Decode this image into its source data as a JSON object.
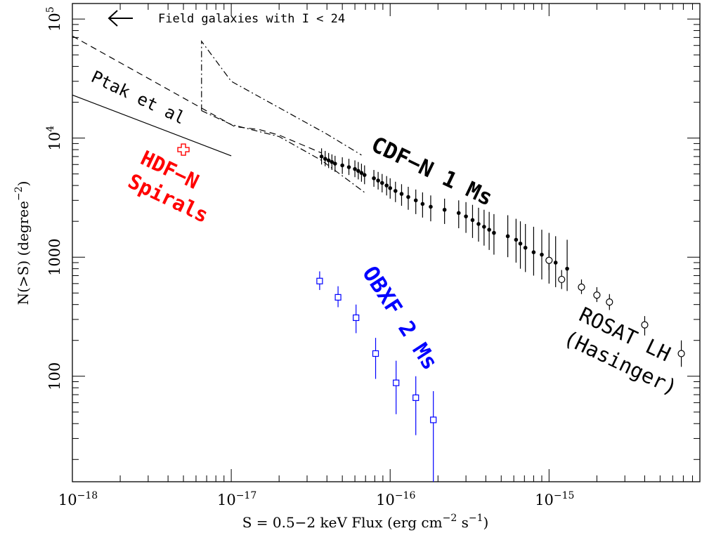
{
  "chart_data": {
    "type": "scatter",
    "title": "",
    "xlabel_main": "S = 0.5−2 keV Flux (erg cm",
    "xlabel_sup1": "−2",
    "xlabel_mid": " s",
    "xlabel_sup2": "−1",
    "xlabel_end": ")",
    "ylabel_main": "N(>S) (degree",
    "ylabel_sup": "−2",
    "ylabel_end": ")",
    "x_log": true,
    "y_log": true,
    "xlim": [
      1e-18,
      8.9e-15
    ],
    "ylim": [
      13,
      135000
    ],
    "x_ticks": [
      {
        "value": 1e-18,
        "base": "10",
        "exp": "−18"
      },
      {
        "value": 1e-17,
        "base": "10",
        "exp": "−17"
      },
      {
        "value": 1e-16,
        "base": "10",
        "exp": "−16"
      },
      {
        "value": 1e-15,
        "base": "10",
        "exp": "−15"
      }
    ],
    "y_ticks": [
      {
        "value": 100,
        "label": "100"
      },
      {
        "value": 1000,
        "label": "1000"
      },
      {
        "value": 10000,
        "base": "10",
        "exp": "4"
      },
      {
        "value": 100000,
        "base": "10",
        "exp": "5"
      }
    ],
    "annotations": {
      "field_galaxies": "Field galaxies with I < 24",
      "ptak": "Ptak et al",
      "hdfn_line1": "HDF−N",
      "hdfn_line2": "Spirals",
      "cdfn": "CDF−N 1 Ms",
      "obxf": "OBXF 2 Ms",
      "rosat_line1": "ROSAT LH",
      "rosat_line2": "(Hasinger)"
    },
    "colors": {
      "cdfn": "#000000",
      "hdfn": "#ff0000",
      "obxf": "#0000ff",
      "rosat": "#000000"
    },
    "series": [
      {
        "name": "CDF−N 1 Ms",
        "marker": "filled-circle",
        "points": [
          [
            3.7e-17,
            7000,
            8200,
            6000
          ],
          [
            3.9e-17,
            6700,
            7800,
            5800
          ],
          [
            4.1e-17,
            6500,
            7500,
            5600
          ],
          [
            4.3e-17,
            6300,
            7300,
            5400
          ],
          [
            4.5e-17,
            6100,
            7100,
            5200
          ],
          [
            5e-17,
            5900,
            6900,
            5000
          ],
          [
            5.5e-17,
            5700,
            6700,
            4900
          ],
          [
            6e-17,
            5500,
            6500,
            4700
          ],
          [
            6.3e-17,
            5300,
            6300,
            4500
          ],
          [
            6.6e-17,
            5100,
            6100,
            4300
          ],
          [
            6.9e-17,
            4900,
            5900,
            4100
          ],
          [
            7.9e-17,
            4600,
            5400,
            3900
          ],
          [
            8.4e-17,
            4400,
            5200,
            3700
          ],
          [
            8.9e-17,
            4200,
            5000,
            3500
          ],
          [
            9.5e-17,
            4000,
            4800,
            3300
          ],
          [
            1e-16,
            3800,
            4600,
            3100
          ],
          [
            1.08e-16,
            3600,
            4300,
            2900
          ],
          [
            1.18e-16,
            3400,
            4100,
            2700
          ],
          [
            1.3e-16,
            3200,
            3900,
            2500
          ],
          [
            1.45e-16,
            3000,
            3700,
            2300
          ],
          [
            1.6e-16,
            2800,
            3500,
            2150
          ],
          [
            1.8e-16,
            2650,
            3300,
            2000
          ],
          [
            2.2e-16,
            2500,
            3100,
            1900
          ],
          [
            2.7e-16,
            2350,
            3000,
            1750
          ],
          [
            3e-16,
            2200,
            2900,
            1600
          ],
          [
            3.3e-16,
            2050,
            2750,
            1450
          ],
          [
            3.6e-16,
            1900,
            2600,
            1350
          ],
          [
            3.9e-16,
            1800,
            2500,
            1250
          ],
          [
            4.2e-16,
            1700,
            2400,
            1150
          ],
          [
            4.5e-16,
            1600,
            2300,
            1050
          ],
          [
            5.5e-16,
            1500,
            2250,
            1000
          ],
          [
            6.2e-16,
            1400,
            2100,
            900
          ],
          [
            6.6e-16,
            1300,
            2000,
            800
          ],
          [
            7.1e-16,
            1200,
            1900,
            750
          ],
          [
            8e-16,
            1100,
            1800,
            700
          ],
          [
            9e-16,
            1050,
            1700,
            650
          ],
          [
            1e-15,
            950,
            1600,
            600
          ],
          [
            1.1e-15,
            900,
            1500,
            560
          ],
          [
            1.3e-15,
            800,
            1400,
            520
          ]
        ]
      },
      {
        "name": "ROSAT LH (Hasinger)",
        "marker": "open-circle",
        "points": [
          [
            1e-15,
            940,
            1150,
            780
          ],
          [
            1.2e-15,
            650,
            780,
            540
          ],
          [
            1.6e-15,
            560,
            650,
            490
          ],
          [
            2e-15,
            480,
            560,
            420
          ],
          [
            2.4e-15,
            420,
            490,
            360
          ],
          [
            4e-15,
            270,
            320,
            220
          ],
          [
            6.8e-15,
            155,
            200,
            120
          ]
        ]
      },
      {
        "name": "OBXF 2 Ms",
        "marker": "open-square",
        "points": [
          [
            3.6e-17,
            630,
            760,
            530
          ],
          [
            4.7e-17,
            460,
            570,
            380
          ],
          [
            6.1e-17,
            310,
            400,
            230
          ],
          [
            8.1e-17,
            155,
            210,
            95
          ],
          [
            1.09e-16,
            88,
            135,
            48
          ],
          [
            1.45e-16,
            66,
            100,
            32
          ],
          [
            1.87e-16,
            43,
            75,
            13
          ]
        ]
      },
      {
        "name": "HDF−N Spirals",
        "marker": "open-cross",
        "points": [
          [
            5e-18,
            8000,
            8000,
            8000
          ]
        ]
      }
    ],
    "lines": [
      {
        "name": "Ptak et al",
        "style": "solid",
        "points": [
          [
            1e-18,
            23000
          ],
          [
            1e-17,
            7100
          ]
        ]
      },
      {
        "name": "Field galaxies with I < 24",
        "style": "dashed",
        "points": [
          [
            1e-18,
            72000
          ],
          [
            1.05e-17,
            12500
          ],
          [
            1.5e-17,
            11800
          ],
          [
            2e-17,
            10600
          ],
          [
            3.7e-17,
            7500
          ]
        ]
      },
      {
        "name": "CDF−N envelope",
        "style": "dashdot",
        "points": [
          [
            6.5e-18,
            17000
          ],
          [
            6.5e-18,
            65000
          ],
          [
            1e-17,
            30000
          ],
          [
            2e-17,
            18000
          ],
          [
            4e-17,
            10800
          ],
          [
            6.6e-17,
            7200
          ]
        ]
      },
      {
        "name": "CDF−N envelope lower",
        "style": "dashdot",
        "points": [
          [
            6.5e-18,
            17000
          ],
          [
            1e-17,
            13000
          ],
          [
            2e-17,
            10300
          ],
          [
            3.7e-17,
            6500
          ],
          [
            6.9e-17,
            3500
          ]
        ]
      }
    ]
  }
}
